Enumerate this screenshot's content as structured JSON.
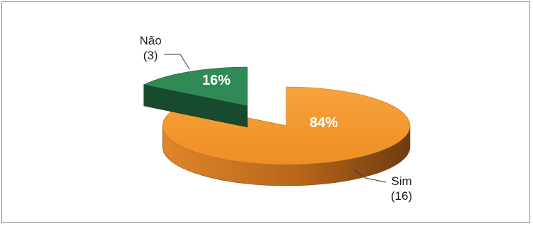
{
  "chart_data": {
    "type": "pie",
    "style": "3d-exploded",
    "categories": [
      "Sim",
      "Não"
    ],
    "values": [
      16,
      3
    ],
    "percent_labels": [
      "84%",
      "16%"
    ],
    "count_labels": [
      "(16)",
      "(3)"
    ],
    "colors": {
      "Sim": "#f0942a",
      "Sim_side": "#b8651a",
      "Sim_side_dark": "#7a4210",
      "Não": "#2f8a55",
      "Não_side": "#1c5a38",
      "Não_side_dark": "#143f28"
    },
    "legend": "none"
  }
}
